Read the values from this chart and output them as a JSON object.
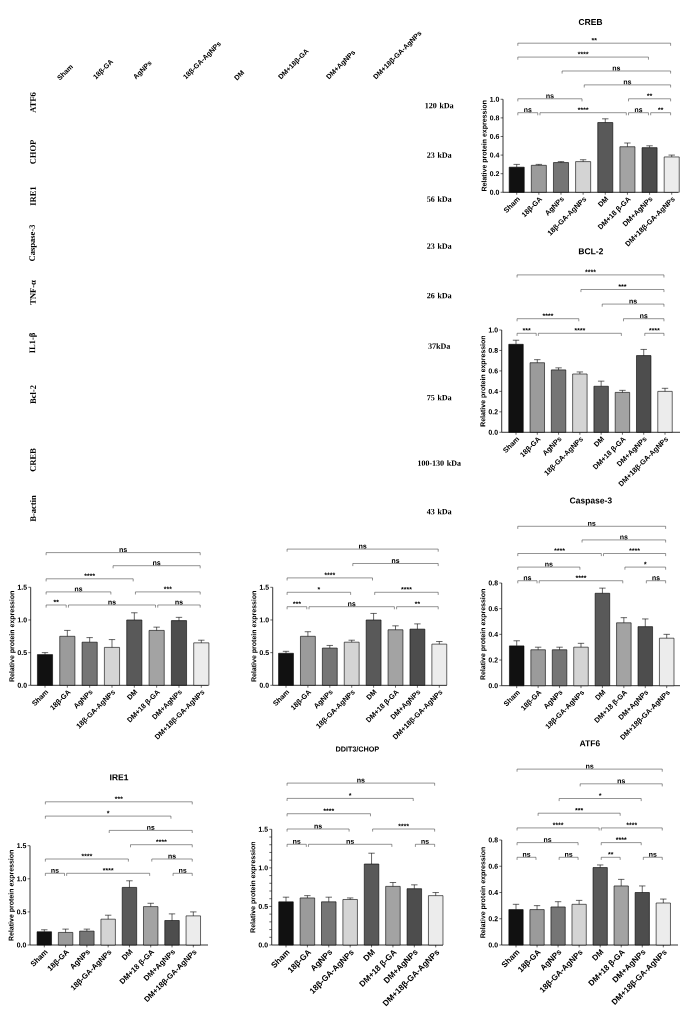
{
  "chart_data": [
    {
      "type": "other",
      "categories": [
        "Sham",
        "18β-GA",
        "AgNPs",
        "18β-GA-AgNPs",
        "DM",
        "DM+18β-GA",
        "DM+AgNPs",
        "DM+18β-GA-AgNPs"
      ],
      "y_categories": [
        "ATF6",
        "CHOP",
        "IRE1",
        "Caspase-3",
        "TNF-α",
        "IL1-β",
        "Bcl-2",
        "CREB",
        "B-actin"
      ],
      "y2_categories": [
        "120 kDa",
        "23 kDa",
        "56 kDa",
        "23 kDa",
        "26 kDa",
        "37kDa",
        "75 kDa",
        "100-130 kDa",
        "43 kDa"
      ]
    },
    {
      "type": "bar",
      "title": "CREB",
      "ylabel": "Relative protein expression",
      "categories": [
        "Sham",
        "18β-GA",
        "AgNPs",
        "18β-GA-AgNPs",
        "DM",
        "DM+18 β-GA",
        "DM+AgNPs",
        "DM+18β-GA-AgNPs"
      ],
      "values": [
        0.27,
        0.29,
        0.32,
        0.33,
        0.75,
        0.49,
        0.48,
        0.38
      ],
      "errors": [
        [
          0.27,
          0.3
        ],
        [
          0.29,
          0.3
        ],
        [
          0.32,
          0.33
        ],
        [
          0.33,
          0.35
        ],
        [
          0.75,
          0.79
        ],
        [
          0.49,
          0.53
        ],
        [
          0.48,
          0.5
        ],
        [
          0.38,
          0.4
        ]
      ],
      "colors": [
        "#111111",
        "#9b9b9b",
        "#757575",
        "#d4d4d4",
        "#595959",
        "#a3a3a3",
        "#4d4d4d",
        "#ececec"
      ],
      "ylim": [
        0,
        1.0
      ],
      "yticks": [
        {
          "value": 0,
          "label": "0.0"
        },
        0.2,
        0.4,
        0.6,
        0.8,
        {
          "value": 1,
          "label": "1.0"
        }
      ],
      "annotations": [
        "**",
        "****",
        "ns",
        "ns",
        "ns",
        "**",
        "ns",
        "****",
        "ns",
        "**"
      ]
    },
    {
      "type": "bar",
      "title": "BCL-2",
      "ylabel": "Relative protein expression",
      "categories": [
        "Sham",
        "18β-GA",
        "AgNPs",
        "18β-GA-AgNPs",
        "DM",
        "DM+18 β-GA",
        "DM+AgNPs",
        "DM+18β-GA-AgNPs"
      ],
      "values": [
        0.86,
        0.68,
        0.61,
        0.57,
        0.45,
        0.39,
        0.75,
        0.4
      ],
      "errors": [
        [
          0.86,
          0.9
        ],
        [
          0.68,
          0.71
        ],
        [
          0.61,
          0.63
        ],
        [
          0.57,
          0.59
        ],
        [
          0.45,
          0.5
        ],
        [
          0.39,
          0.41
        ],
        [
          0.75,
          0.81
        ],
        [
          0.4,
          0.43
        ]
      ],
      "colors": [
        "#111111",
        "#9b9b9b",
        "#757575",
        "#d4d4d4",
        "#595959",
        "#a3a3a3",
        "#4d4d4d",
        "#ececec"
      ],
      "ylim": [
        0,
        1.0
      ],
      "yticks": [
        {
          "value": 0,
          "label": "0.0"
        },
        0.2,
        0.4,
        0.6,
        0.8,
        {
          "value": 1,
          "label": "1.0"
        }
      ],
      "annotations": [
        "****",
        "***",
        "ns",
        "****",
        "ns",
        "***",
        "****",
        "****"
      ]
    },
    {
      "type": "bar",
      "ylabel": "Relative protein expression",
      "categories": [
        "Sham",
        "18β-GA",
        "AgNPs",
        "18β-GA-AgNPs",
        "DM",
        "DM+18 β-GA",
        "DM+AgNPs",
        "DM+18β-GA-AgNPs"
      ],
      "values": [
        0.47,
        0.75,
        0.66,
        0.58,
        1.0,
        0.84,
        0.99,
        0.65
      ],
      "errors": [
        [
          0.47,
          0.5
        ],
        [
          0.75,
          0.84
        ],
        [
          0.66,
          0.73
        ],
        [
          0.58,
          0.7
        ],
        [
          1.0,
          1.11
        ],
        [
          0.84,
          0.89
        ],
        [
          0.99,
          1.04
        ],
        [
          0.65,
          0.69
        ]
      ],
      "colors": [
        "#111111",
        "#9b9b9b",
        "#757575",
        "#d4d4d4",
        "#595959",
        "#a3a3a3",
        "#4d4d4d",
        "#ececec"
      ],
      "ylim": [
        0,
        1.5
      ],
      "yticks": [
        {
          "value": 0,
          "label": "0.0"
        },
        0.5,
        {
          "value": 1,
          "label": "1.0"
        },
        1.5
      ],
      "annotations": [
        "ns",
        "ns",
        "****",
        "ns",
        "***",
        "**",
        "ns",
        "ns"
      ]
    },
    {
      "type": "bar",
      "ylabel": "Relative protein expression",
      "categories": [
        "Sham",
        "18β-GA",
        "AgNPs",
        "18β-GA-AgNPs",
        "DM",
        "DM+18 β-GA",
        "DM+AgNPs",
        "DM+18β-GA-AgNPs"
      ],
      "values": [
        0.49,
        0.75,
        0.57,
        0.66,
        1.0,
        0.85,
        0.86,
        0.63
      ],
      "errors": [
        [
          0.49,
          0.52
        ],
        [
          0.75,
          0.82
        ],
        [
          0.57,
          0.61
        ],
        [
          0.66,
          0.69
        ],
        [
          1.0,
          1.1
        ],
        [
          0.85,
          0.91
        ],
        [
          0.86,
          0.94
        ],
        [
          0.63,
          0.67
        ]
      ],
      "colors": [
        "#111111",
        "#9b9b9b",
        "#757575",
        "#d4d4d4",
        "#595959",
        "#a3a3a3",
        "#4d4d4d",
        "#ececec"
      ],
      "ylim": [
        0,
        1.5
      ],
      "yticks": [
        {
          "value": 0,
          "label": "0.0"
        },
        0.5,
        {
          "value": 1,
          "label": "1.0"
        },
        1.5
      ],
      "annotations": [
        "ns",
        "ns",
        "****",
        "*",
        "****",
        "***",
        "ns",
        "**"
      ]
    },
    {
      "type": "bar",
      "title": "Caspase-3",
      "ylabel": "Relative protein expression",
      "categories": [
        "Sham",
        "18β-GA",
        "AgNPs",
        "18β-GA-AgNPs",
        "DM",
        "DM+18 β-GA",
        "DM+AgNPs",
        "DM+18β-GA-AgNPs"
      ],
      "values": [
        0.31,
        0.28,
        0.28,
        0.3,
        0.72,
        0.49,
        0.46,
        0.37
      ],
      "errors": [
        [
          0.31,
          0.35
        ],
        [
          0.28,
          0.3
        ],
        [
          0.28,
          0.3
        ],
        [
          0.3,
          0.33
        ],
        [
          0.72,
          0.76
        ],
        [
          0.49,
          0.53
        ],
        [
          0.46,
          0.52
        ],
        [
          0.37,
          0.4
        ]
      ],
      "colors": [
        "#111111",
        "#9b9b9b",
        "#757575",
        "#d4d4d4",
        "#595959",
        "#a3a3a3",
        "#4d4d4d",
        "#ececec"
      ],
      "ylim": [
        0,
        0.8
      ],
      "yticks": [
        {
          "value": 0,
          "label": "0.0"
        },
        0.2,
        0.4,
        0.6,
        0.8
      ],
      "annotations": [
        "ns",
        "ns",
        "****",
        "****",
        "ns",
        "*",
        "ns",
        "****",
        "ns"
      ]
    },
    {
      "type": "bar",
      "title": "IRE1",
      "ylabel": "Relative protein expression",
      "categories": [
        "Sham",
        "18β-GA",
        "AgNPs",
        "18β-GA-AgNPs",
        "DM",
        "DM+18 β-GA",
        "DM+AgNPs",
        "DM+18β-GA-AgNPs"
      ],
      "values": [
        0.2,
        0.19,
        0.21,
        0.39,
        0.87,
        0.58,
        0.37,
        0.44
      ],
      "errors": [
        [
          0.2,
          0.23
        ],
        [
          0.19,
          0.24
        ],
        [
          0.21,
          0.24
        ],
        [
          0.39,
          0.45
        ],
        [
          0.87,
          0.97
        ],
        [
          0.58,
          0.63
        ],
        [
          0.37,
          0.47
        ],
        [
          0.44,
          0.5
        ]
      ],
      "colors": [
        "#111111",
        "#9b9b9b",
        "#757575",
        "#d4d4d4",
        "#595959",
        "#a3a3a3",
        "#4d4d4d",
        "#ececec"
      ],
      "ylim": [
        0,
        1.5
      ],
      "yticks": [
        {
          "value": 0,
          "label": "0.0"
        },
        0.5,
        {
          "value": 1,
          "label": "1.0"
        },
        1.5
      ],
      "annotations": [
        "***",
        "*",
        "ns",
        "****",
        "****",
        "ns",
        "ns",
        "****",
        "ns"
      ]
    },
    {
      "type": "bar",
      "title": "DDIT3/CHOP",
      "ylabel": "Relative protein expression",
      "categories": [
        "Sham",
        "18β-GA",
        "AgNPs",
        "18β-GA-AgNPs",
        "DM",
        "DM+18 β-GA",
        "DM+AgNPs",
        "DM+18β-GA-AgNPs"
      ],
      "values": [
        0.56,
        0.61,
        0.56,
        0.59,
        1.05,
        0.76,
        0.73,
        0.64
      ],
      "errors": [
        [
          0.56,
          0.62
        ],
        [
          0.61,
          0.64
        ],
        [
          0.56,
          0.62
        ],
        [
          0.59,
          0.61
        ],
        [
          1.05,
          1.19
        ],
        [
          0.76,
          0.81
        ],
        [
          0.73,
          0.78
        ],
        [
          0.64,
          0.68
        ]
      ],
      "colors": [
        "#111111",
        "#9b9b9b",
        "#757575",
        "#d4d4d4",
        "#595959",
        "#a3a3a3",
        "#4d4d4d",
        "#ececec"
      ],
      "ylim": [
        0,
        1.5
      ],
      "yticks": [
        {
          "value": 0,
          "label": "0.0"
        },
        {
          "value": 0.1,
          "label": null
        },
        {
          "value": 0.2,
          "label": null
        },
        {
          "value": 0.3,
          "label": null
        },
        {
          "value": 0.4,
          "label": null
        },
        0.5,
        {
          "value": 0.6,
          "label": null
        },
        {
          "value": 0.7,
          "label": null
        },
        {
          "value": 0.8,
          "label": null
        },
        {
          "value": 0.9,
          "label": null
        },
        {
          "value": 1,
          "label": "1.0"
        },
        {
          "value": 1.1,
          "label": null
        },
        {
          "value": 1.2,
          "label": null
        },
        {
          "value": 1.3,
          "label": null
        },
        {
          "value": 1.4,
          "label": null
        },
        1.5
      ],
      "annotations": [
        "ns",
        "*",
        "****",
        "ns",
        "****",
        "ns",
        "ns",
        "ns"
      ]
    },
    {
      "type": "bar",
      "title": "ATF6",
      "ylabel": "Relative protein expression",
      "categories": [
        "Sham",
        "18β-GA",
        "AgNPs",
        "18β-GA-AgNPs",
        "DM",
        "DM+18 β-GA",
        "DM+AgNPs",
        "DM+18β-GA-AgNPs"
      ],
      "values": [
        0.27,
        0.27,
        0.29,
        0.31,
        0.59,
        0.45,
        0.4,
        0.32
      ],
      "errors": [
        [
          0.27,
          0.31
        ],
        [
          0.27,
          0.3
        ],
        [
          0.29,
          0.33
        ],
        [
          0.31,
          0.34
        ],
        [
          0.59,
          0.61
        ],
        [
          0.45,
          0.5
        ],
        [
          0.4,
          0.45
        ],
        [
          0.32,
          0.35
        ]
      ],
      "colors": [
        "#111111",
        "#9b9b9b",
        "#757575",
        "#d4d4d4",
        "#595959",
        "#a3a3a3",
        "#4d4d4d",
        "#ececec"
      ],
      "ylim": [
        0,
        0.8
      ],
      "yticks": [
        {
          "value": 0,
          "label": "0.0"
        },
        0.2,
        0.4,
        0.6,
        0.8
      ],
      "annotations": [
        "ns",
        "ns",
        "*",
        "***",
        "****",
        "****",
        "ns",
        "****",
        "ns",
        "ns",
        "**",
        "ns"
      ]
    }
  ]
}
